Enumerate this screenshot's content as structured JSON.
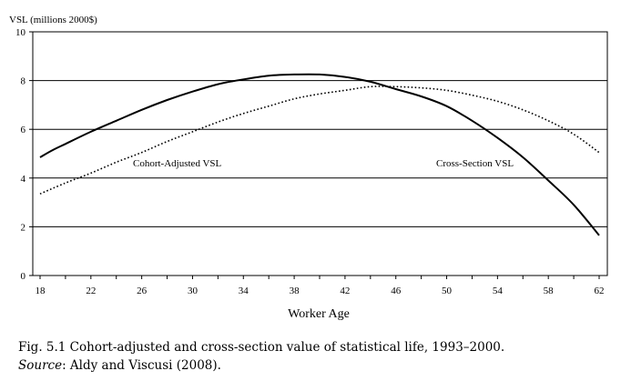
{
  "chart_data": {
    "type": "line",
    "ylabel": "VSL (millions 2000$)",
    "xlabel": "Worker Age",
    "xlim": [
      18,
      62
    ],
    "ylim": [
      0,
      10
    ],
    "x_ticks": [
      18,
      20,
      22,
      24,
      26,
      28,
      30,
      32,
      34,
      36,
      38,
      40,
      42,
      44,
      46,
      48,
      50,
      52,
      54,
      56,
      58,
      60,
      62
    ],
    "x_tick_labels": [
      "18",
      "22",
      "26",
      "30",
      "34",
      "38",
      "42",
      "46",
      "50",
      "54",
      "58",
      "62"
    ],
    "y_ticks": [
      0,
      2,
      4,
      6,
      8,
      10
    ],
    "y_tick_labels": [
      "0",
      "2",
      "4",
      "6",
      "8",
      "10"
    ],
    "grid": "horizontal",
    "series": [
      {
        "name": "Cross-Section VSL",
        "style": "solid",
        "x": [
          18,
          19,
          20,
          22,
          24,
          26,
          28,
          30,
          32,
          34,
          36,
          38,
          40,
          42,
          44,
          46,
          48,
          50,
          52,
          54,
          56,
          58,
          60,
          62
        ],
        "values": [
          4.85,
          5.15,
          5.4,
          5.9,
          6.35,
          6.8,
          7.2,
          7.55,
          7.85,
          8.05,
          8.2,
          8.25,
          8.25,
          8.15,
          7.95,
          7.65,
          7.35,
          6.95,
          6.35,
          5.65,
          4.85,
          3.9,
          2.9,
          1.65
        ]
      },
      {
        "name": "Cohort-Adjusted VSL",
        "style": "dotted",
        "x": [
          18,
          20,
          22,
          24,
          26,
          28,
          30,
          32,
          34,
          36,
          38,
          40,
          42,
          44,
          46,
          48,
          50,
          52,
          54,
          56,
          58,
          60,
          62
        ],
        "values": [
          3.35,
          3.8,
          4.2,
          4.65,
          5.05,
          5.5,
          5.9,
          6.3,
          6.65,
          6.95,
          7.25,
          7.45,
          7.6,
          7.75,
          7.75,
          7.7,
          7.6,
          7.4,
          7.15,
          6.8,
          6.35,
          5.8,
          5.05
        ]
      }
    ],
    "annotations": {
      "cohort_label": "Cohort-Adjusted VSL",
      "cross_label": "Cross-Section VSL"
    }
  },
  "caption": {
    "line1": "Fig. 5.1 Cohort-adjusted and cross-section value of statistical life, 1993–2000.",
    "source_label": "Source",
    "source_text": ": Aldy and Viscusi (2008)."
  }
}
